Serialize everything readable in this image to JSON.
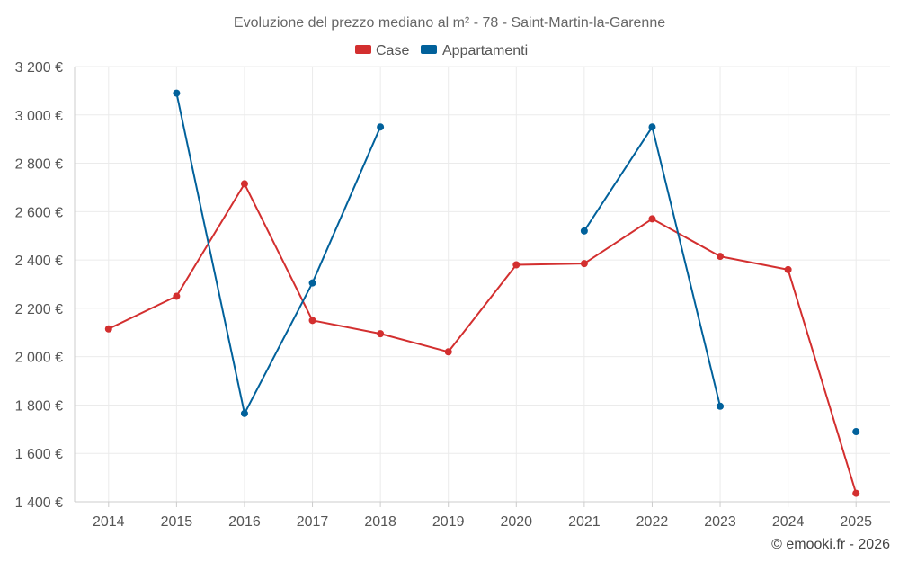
{
  "chart_data": {
    "type": "line",
    "title": "Evoluzione del prezzo mediano al m² - 78 - Saint-Martin-la-Garenne",
    "categories": [
      "2014",
      "2015",
      "2016",
      "2017",
      "2018",
      "2019",
      "2020",
      "2021",
      "2022",
      "2023",
      "2024",
      "2025"
    ],
    "ylim": [
      1400,
      3200
    ],
    "yticks": [
      1400,
      1600,
      1800,
      2000,
      2200,
      2400,
      2600,
      2800,
      3000,
      3200
    ],
    "ytick_labels": [
      "1 400 €",
      "1 600 €",
      "1 800 €",
      "2 000 €",
      "2 200 €",
      "2 400 €",
      "2 600 €",
      "2 800 €",
      "3 000 €",
      "3 200 €"
    ],
    "grid": true,
    "legend_position": "top-center",
    "series": [
      {
        "name": "Case",
        "color": "#d32f2f",
        "values": [
          2115,
          2250,
          2715,
          2150,
          2095,
          2020,
          2380,
          2385,
          2570,
          2415,
          2360,
          1435
        ]
      },
      {
        "name": "Appartamenti",
        "color": "#01619b",
        "values": [
          null,
          3090,
          1765,
          2305,
          2950,
          null,
          null,
          2520,
          2950,
          1795,
          null,
          1690
        ]
      }
    ]
  },
  "credit": "© emooki.fr - 2026"
}
